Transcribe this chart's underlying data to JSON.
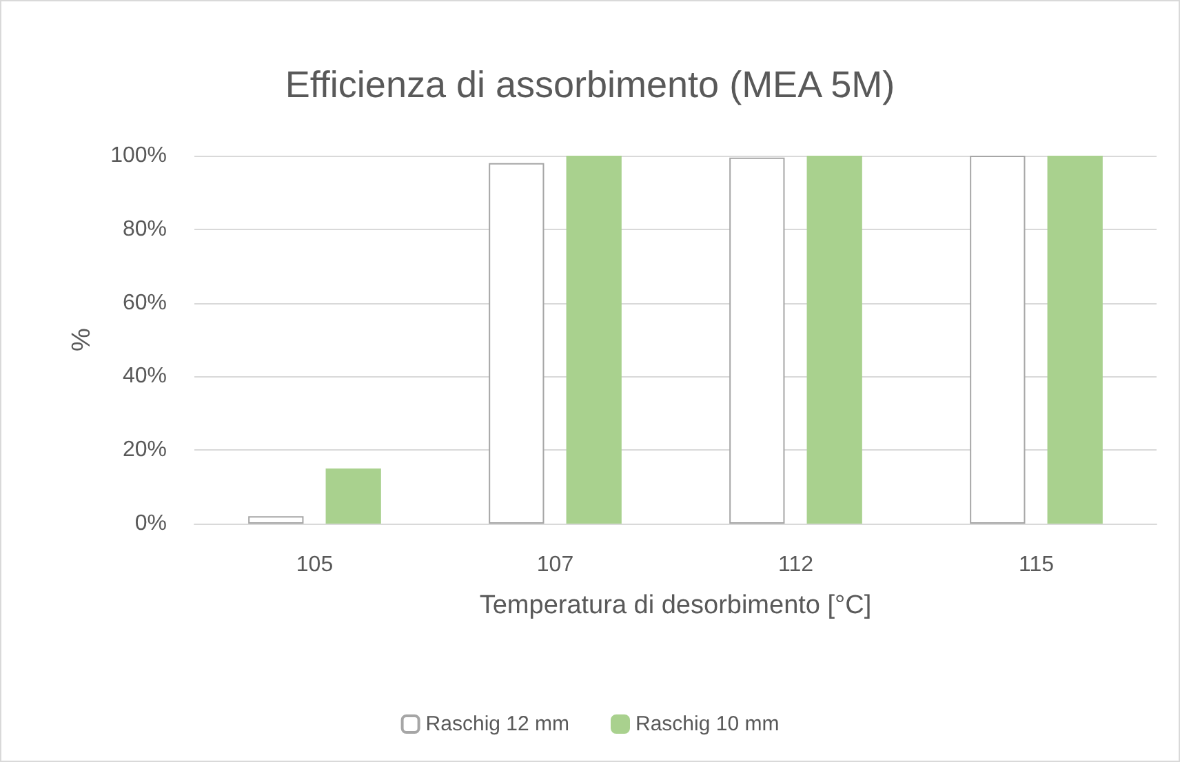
{
  "chart_data": {
    "type": "bar",
    "title": "Efficienza di assorbimento (MEA 5M)",
    "xlabel": "Temperatura di desorbimento [°C]",
    "ylabel": "%",
    "categories": [
      "105",
      "107",
      "112",
      "115"
    ],
    "series": [
      {
        "name": "Raschig 12 mm",
        "color": "#ffffff",
        "values": [
          2,
          98,
          99.5,
          100
        ]
      },
      {
        "name": "Raschig 10 mm",
        "color": "#a9d18e",
        "values": [
          15,
          100,
          100,
          100
        ]
      }
    ],
    "ylim": [
      0,
      100
    ],
    "yticks": [
      {
        "value": 0,
        "label": "0%"
      },
      {
        "value": 20,
        "label": "20%"
      },
      {
        "value": 40,
        "label": "40%"
      },
      {
        "value": 60,
        "label": "60%"
      },
      {
        "value": 80,
        "label": "80%"
      },
      {
        "value": 100,
        "label": "100%"
      }
    ],
    "grid": "y",
    "legend": "bottom"
  }
}
